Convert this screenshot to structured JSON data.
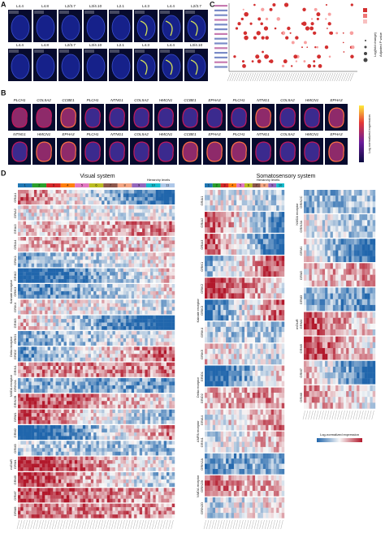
{
  "panel_labels": [
    "A",
    "B",
    "C",
    "D"
  ],
  "panel_a": {
    "rows": [
      [
        "L4.4",
        "L4.8",
        "L2/3.7",
        "L3/4.10",
        "L2.1",
        "L4.3",
        "L4.4",
        "L2/3.7"
      ],
      [
        "L4.4",
        "L4.8",
        "L2/3.7",
        "L3/4.10",
        "L2.1",
        "L4.3",
        "L4.4",
        "L3/4.10"
      ]
    ]
  },
  "panel_b": {
    "rows": [
      [
        "PLCH1",
        "COL5A2",
        "CCBE1",
        "PLCH1",
        "NTNG1",
        "COL5A2",
        "HMCN1",
        "CCBE1",
        "EPHA3",
        "PLCH1",
        "NTNG1",
        "COL5A2",
        "HMCN1",
        "EPHA3"
      ],
      [
        "NTNG1",
        "HMCN1",
        "EPHA3",
        "PLCH1",
        "NTNG1",
        "COL5A2",
        "HMCN1",
        "CCBE1",
        "EPHA3",
        "PLCH1",
        "NTNG1",
        "COL5A2",
        "HMCN1",
        "EPHA3"
      ]
    ],
    "colorbar_label": "Log normalized expression"
  },
  "panel_c": {
    "legend_titles": [
      "Log(fold change)",
      "Adjusted P value"
    ]
  },
  "panel_d": {
    "visual": {
      "title": "Visual system",
      "hierarchy_label": "Hierarchy levels",
      "levels": [
        1,
        2,
        3,
        4,
        5,
        6,
        7,
        8,
        9,
        10,
        11
      ],
      "groups": [
        {
          "genes": [
            "GRIA1",
            "GRIA2",
            "GRIA3",
            "GRIA4"
          ]
        },
        {
          "name": "Kainate receptor",
          "genes": [
            "GRIK1",
            "GRIK2",
            "GRIK3",
            "GRIK4",
            "GRIK5"
          ]
        },
        {
          "name": "Delta receptor",
          "genes": [
            "GRID1",
            "GRID2"
          ]
        },
        {
          "name": "NMDA receptor",
          "genes": [
            "GRIN1",
            "GRIN2A",
            "GRIN2B"
          ]
        },
        {
          "name": "mGluR",
          "genes": [
            "GRM1",
            "GRM2",
            "GRM3",
            "GRM4",
            "GRM5",
            "GRM7",
            "GRM8"
          ]
        }
      ]
    },
    "somatosensory": {
      "title": "Somatosensory system",
      "hierarchy_label": "Hierarchy levels",
      "levels": [
        1,
        2,
        3,
        4,
        5,
        6,
        7,
        8,
        9,
        10
      ],
      "groups_left": [
        {
          "genes": [
            "GRIA1",
            "GRIA2",
            "GRIA3"
          ]
        },
        {
          "name": "Kainate receptor",
          "genes": [
            "GRIK1",
            "GRIK2",
            "GRIK3",
            "GRIK4",
            "GRIK5"
          ]
        },
        {
          "name": "Delta receptor",
          "genes": [
            "GRID1",
            "GRID2"
          ]
        },
        {
          "name": "AMPA receptor",
          "genes": [
            "GRIA4",
            "GRIN1"
          ]
        },
        {
          "name": "NMDA receptor",
          "genes": [
            "GRIN2A",
            "GRIN2B",
            "GRIN2D"
          ]
        }
      ],
      "groups_right": [
        {
          "name": "NMDA receptor",
          "genes": [
            "GRIN2C",
            "GRIN3A"
          ]
        },
        {
          "name": "mGluR",
          "genes": [
            "GRM1",
            "GRM2",
            "GRM3",
            "GRM4",
            "GRM5",
            "GRM7",
            "GRM8"
          ]
        }
      ],
      "colorbar_label": "Log-normalized expression"
    }
  }
}
